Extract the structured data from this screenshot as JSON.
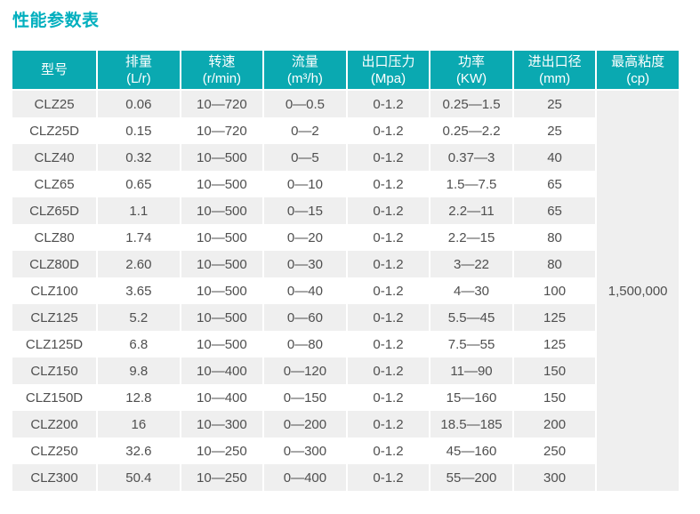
{
  "title": "性能参数表",
  "colors": {
    "accent_teal": "#0AA9B1",
    "title_teal": "#00AFBE",
    "row_stripe": "#EFEFEF",
    "body_text": "#4F4F4F",
    "header_text": "#FFFFFF"
  },
  "table": {
    "columns": [
      {
        "key": "model",
        "label": "型号",
        "unit": ""
      },
      {
        "key": "displacement",
        "label": "排量",
        "unit": "(L/r)"
      },
      {
        "key": "speed",
        "label": "转速",
        "unit": "(r/min)"
      },
      {
        "key": "flow",
        "label": "流量",
        "unit": "(m³/h)"
      },
      {
        "key": "outlet-pressure",
        "label": "出口压力",
        "unit": "(Mpa)"
      },
      {
        "key": "power",
        "label": "功率",
        "unit": "(KW)"
      },
      {
        "key": "port-diameter",
        "label": "进出口径",
        "unit": "(mm)"
      },
      {
        "key": "max-viscosity",
        "label": "最高粘度",
        "unit": "(cp)"
      }
    ],
    "merged_max_viscosity": "1,500,000",
    "rows": [
      [
        "CLZ25",
        "0.06",
        "10—720",
        "0—0.5",
        "0-1.2",
        "0.25—1.5",
        "25"
      ],
      [
        "CLZ25D",
        "0.15",
        "10—720",
        "0—2",
        "0-1.2",
        "0.25—2.2",
        "25"
      ],
      [
        "CLZ40",
        "0.32",
        "10—500",
        "0—5",
        "0-1.2",
        "0.37—3",
        "40"
      ],
      [
        "CLZ65",
        "0.65",
        "10—500",
        "0—10",
        "0-1.2",
        "1.5—7.5",
        "65"
      ],
      [
        "CLZ65D",
        "1.1",
        "10—500",
        "0—15",
        "0-1.2",
        "2.2—11",
        "65"
      ],
      [
        "CLZ80",
        "1.74",
        "10—500",
        "0—20",
        "0-1.2",
        "2.2—15",
        "80"
      ],
      [
        "CLZ80D",
        "2.60",
        "10—500",
        "0—30",
        "0-1.2",
        "3—22",
        "80"
      ],
      [
        "CLZ100",
        "3.65",
        "10—500",
        "0—40",
        "0-1.2",
        "4—30",
        "100"
      ],
      [
        "CLZ125",
        "5.2",
        "10—500",
        "0—60",
        "0-1.2",
        "5.5—45",
        "125"
      ],
      [
        "CLZ125D",
        "6.8",
        "10—500",
        "0—80",
        "0-1.2",
        "7.5—55",
        "125"
      ],
      [
        "CLZ150",
        "9.8",
        "10—400",
        "0—120",
        "0-1.2",
        "11—90",
        "150"
      ],
      [
        "CLZ150D",
        "12.8",
        "10—400",
        "0—150",
        "0-1.2",
        "15—160",
        "150"
      ],
      [
        "CLZ200",
        "16",
        "10—300",
        "0—200",
        "0-1.2",
        "18.5—185",
        "200"
      ],
      [
        "CLZ250",
        "32.6",
        "10—250",
        "0—300",
        "0-1.2",
        "45—160",
        "250"
      ],
      [
        "CLZ300",
        "50.4",
        "10—250",
        "0—400",
        "0-1.2",
        "55—200",
        "300"
      ]
    ]
  }
}
